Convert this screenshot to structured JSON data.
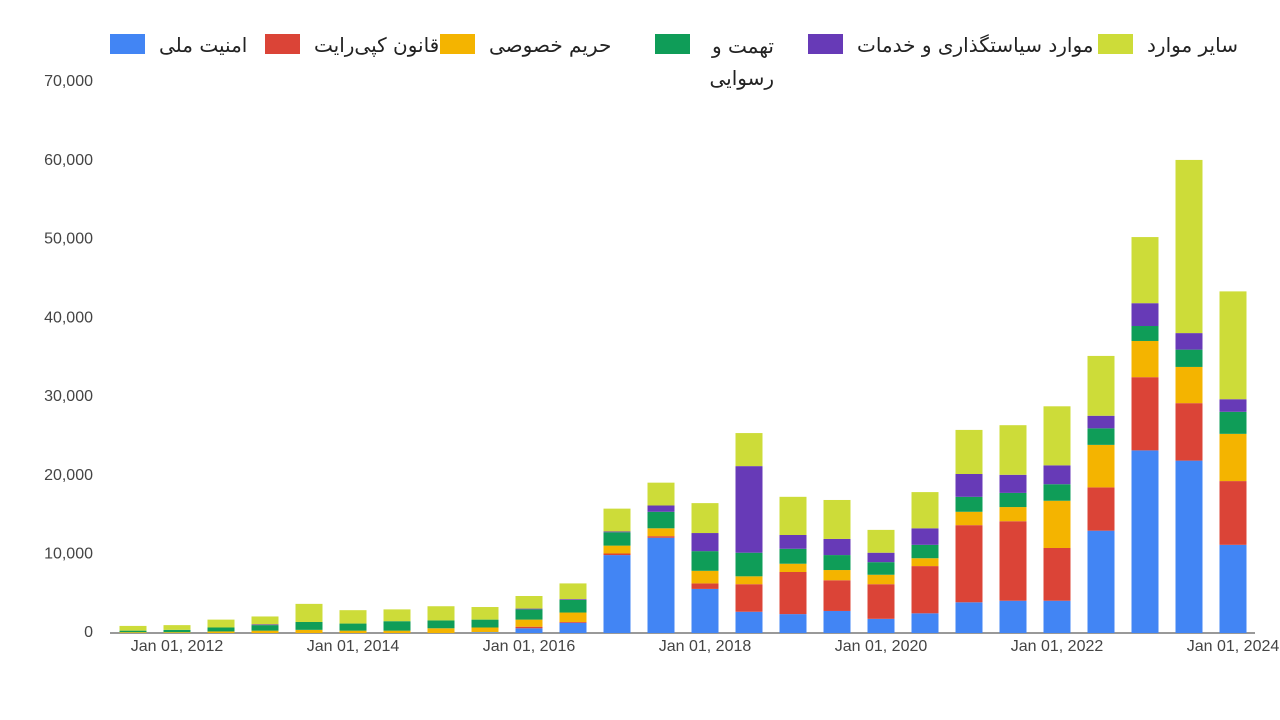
{
  "chart_data": {
    "type": "stacked-bar",
    "categories": [
      null,
      "Jan 01, 2012",
      null,
      null,
      null,
      "Jan 01, 2014",
      null,
      null,
      null,
      "Jan 01, 2016",
      null,
      null,
      null,
      "Jan 01, 2018",
      null,
      null,
      null,
      "Jan 01, 2020",
      null,
      null,
      null,
      "Jan 01, 2022",
      null,
      null,
      null,
      "Jan 01, 2024"
    ],
    "series": [
      {
        "name": "امنیت ملی",
        "color": "#4285f4",
        "values": [
          0,
          0,
          0,
          0,
          0,
          0,
          0,
          0,
          100,
          600,
          1300,
          9900,
          12100,
          5600,
          2700,
          2400,
          2800,
          1800,
          2500,
          3900,
          4100,
          4100,
          13000,
          23200,
          21900,
          11200
        ]
      },
      {
        "name": "قانون کپی‌رایت",
        "color": "#db4437",
        "values": [
          0,
          0,
          0,
          0,
          0,
          0,
          0,
          0,
          0,
          200,
          100,
          200,
          200,
          700,
          3500,
          5350,
          3900,
          4400,
          6000,
          9800,
          10100,
          6700,
          5500,
          9300,
          7300,
          8100
        ]
      },
      {
        "name": "حریم خصوصی",
        "color": "#f4b400",
        "values": [
          100,
          100,
          200,
          300,
          400,
          300,
          300,
          600,
          600,
          900,
          1200,
          1000,
          1000,
          1600,
          1000,
          1050,
          1300,
          1200,
          1000,
          1700,
          1800,
          6000,
          5400,
          4600,
          4600,
          6000
        ]
      },
      {
        "name": "تهمت و رسوایی",
        "color": "#0f9d58",
        "values": [
          200,
          300,
          500,
          700,
          1000,
          900,
          1200,
          1000,
          1000,
          1300,
          1600,
          1700,
          2100,
          2500,
          3000,
          1900,
          1900,
          1600,
          1700,
          1900,
          1800,
          2100,
          2100,
          1900,
          2200,
          2800
        ]
      },
      {
        "name": "موارد سیاستگذاری و خدمات",
        "color": "#673ab7",
        "values": [
          0,
          0,
          0,
          100,
          0,
          0,
          0,
          0,
          0,
          100,
          100,
          100,
          800,
          2300,
          11000,
          1750,
          2050,
          1200,
          2100,
          2900,
          2300,
          2400,
          1600,
          2900,
          2100,
          1600
        ]
      },
      {
        "name": "سایر موارد",
        "color": "#cddc39",
        "values": [
          600,
          600,
          1000,
          1000,
          2300,
          1700,
          1500,
          1800,
          1600,
          1600,
          2000,
          2900,
          2900,
          3800,
          4200,
          4850,
          4950,
          2900,
          4600,
          5600,
          6300,
          7500,
          7600,
          8400,
          22000,
          13700
        ]
      }
    ],
    "ylim": [
      0,
      70000
    ],
    "yticks": [
      0,
      {
        "value": 10000,
        "label": "10,000"
      },
      {
        "value": 20000,
        "label": "20,000"
      },
      {
        "value": 30000,
        "label": "30,000"
      },
      {
        "value": 40000,
        "label": "40,000"
      },
      {
        "value": 50000,
        "label": "50,000"
      },
      {
        "value": 60000,
        "label": "60,000"
      },
      {
        "value": 70000,
        "label": "70,000"
      }
    ],
    "grid": false
  }
}
